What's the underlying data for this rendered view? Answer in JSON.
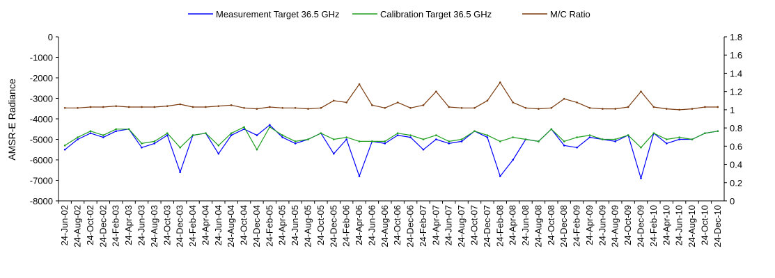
{
  "chart_data": {
    "type": "line",
    "title": "",
    "xlabel": "",
    "ylabel": "AMSR-E Radiance",
    "y2label": "",
    "ylim": [
      -8000,
      0
    ],
    "y2lim": [
      0,
      1.8
    ],
    "yticks": [
      "0",
      "-1000",
      "-2000",
      "-3000",
      "-4000",
      "-5000",
      "-6000",
      "-7000",
      "-8000"
    ],
    "y2ticks": [
      "1.8",
      "1.6",
      "1.4",
      "1.2",
      "1",
      "0.8",
      "0.6",
      "0.4",
      "0.2",
      "0"
    ],
    "legend_position": "top",
    "x_categories": [
      "24-Jun-02",
      "24-Aug-02",
      "24-Oct-02",
      "24-Dec-02",
      "24-Feb-03",
      "24-Apr-03",
      "24-Jun-03",
      "24-Aug-03",
      "24-Oct-03",
      "24-Dec-03",
      "24-Feb-04",
      "24-Apr-04",
      "24-Jun-04",
      "24-Aug-04",
      "24-Oct-04",
      "24-Dec-04",
      "24-Feb-05",
      "24-Apr-05",
      "24-Jun-05",
      "24-Aug-05",
      "24-Oct-05",
      "24-Dec-05",
      "24-Feb-06",
      "24-Apr-06",
      "24-Jun-06",
      "24-Aug-06",
      "24-Oct-06",
      "24-Dec-06",
      "24-Feb-07",
      "24-Apr-07",
      "24-Jun-07",
      "24-Aug-07",
      "24-Oct-07",
      "24-Dec-07",
      "24-Feb-08",
      "24-Apr-08",
      "24-Jun-08",
      "24-Aug-08",
      "24-Oct-08",
      "24-Dec-08",
      "24-Feb-09",
      "24-Apr-09",
      "24-Jun-09",
      "24-Aug-09",
      "24-Oct-09",
      "24-Dec-09",
      "24-Feb-10",
      "24-Apr-10",
      "24-Jun-10",
      "24-Aug-10",
      "24-Oct-10",
      "24-Dec-10"
    ],
    "series": [
      {
        "name": "Measurement Target 36.5 GHz",
        "axis": "left",
        "color": "#0000ff",
        "values": [
          -5500,
          -5000,
          -4700,
          -4900,
          -4600,
          -4500,
          -5400,
          -5200,
          -4800,
          -6600,
          -4800,
          -4700,
          -5700,
          -4800,
          -4500,
          -4800,
          -4300,
          -4900,
          -5200,
          -5000,
          -4700,
          -5700,
          -5000,
          -6800,
          -5100,
          -5200,
          -4800,
          -4900,
          -5500,
          -5000,
          -5200,
          -5100,
          -4600,
          -4900,
          -6800,
          -6000,
          -5000,
          -5100,
          -4500,
          -5300,
          -5400,
          -4900,
          -5000,
          -5100,
          -4800,
          -6900,
          -4700,
          -5200,
          -5000,
          -5000,
          -4700,
          -4600
        ]
      },
      {
        "name": "Calibration Target 36.5 GHz",
        "axis": "left",
        "color": "#1e9e1e",
        "values": [
          -5300,
          -4900,
          -4600,
          -4800,
          -4500,
          -4500,
          -5200,
          -5100,
          -4700,
          -5400,
          -4800,
          -4700,
          -5300,
          -4700,
          -4400,
          -5500,
          -4400,
          -4800,
          -5100,
          -5000,
          -4700,
          -5000,
          -4900,
          -5100,
          -5100,
          -5100,
          -4700,
          -4800,
          -5000,
          -4800,
          -5100,
          -5000,
          -4600,
          -4800,
          -5100,
          -4900,
          -5000,
          -5100,
          -4500,
          -5100,
          -4900,
          -4800,
          -5000,
          -5000,
          -4800,
          -5400,
          -4700,
          -5000,
          -4900,
          -5000,
          -4700,
          -4600
        ]
      },
      {
        "name": "M/C Ratio",
        "axis": "right",
        "color": "#7a3a0e",
        "values": [
          1.02,
          1.02,
          1.03,
          1.03,
          1.04,
          1.03,
          1.03,
          1.03,
          1.04,
          1.06,
          1.03,
          1.03,
          1.04,
          1.05,
          1.02,
          1.01,
          1.03,
          1.02,
          1.02,
          1.01,
          1.02,
          1.1,
          1.08,
          1.28,
          1.05,
          1.02,
          1.08,
          1.02,
          1.05,
          1.2,
          1.03,
          1.02,
          1.02,
          1.1,
          1.3,
          1.08,
          1.02,
          1.01,
          1.02,
          1.12,
          1.08,
          1.02,
          1.01,
          1.01,
          1.03,
          1.2,
          1.03,
          1.01,
          1.0,
          1.01,
          1.03,
          1.03
        ]
      }
    ]
  }
}
